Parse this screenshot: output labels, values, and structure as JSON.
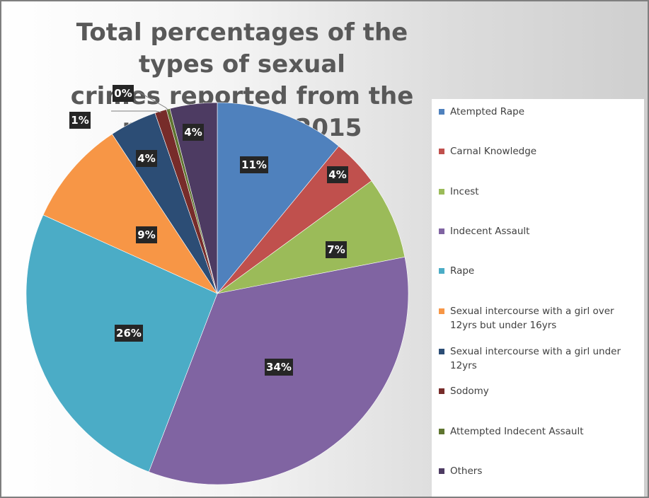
{
  "chart_data": {
    "type": "pie",
    "title": "Total percentages of the types of sexual crimes reported from the period 2008-2015",
    "title_lines": [
      "Total percentages of the types of sexual",
      "crimes reported from the period 2008-2015"
    ],
    "legend_position": "right",
    "slices": [
      {
        "label": "Atempted Rape",
        "value": 11,
        "data_label": "11%",
        "color": "#4f81bd"
      },
      {
        "label": "Carnal Knowledge",
        "value": 4,
        "data_label": "4%",
        "color": "#c0504d"
      },
      {
        "label": "Incest",
        "value": 7,
        "data_label": "7%",
        "color": "#9bbb59"
      },
      {
        "label": "Indecent Assault",
        "value": 34,
        "data_label": "34%",
        "color": "#8064a2"
      },
      {
        "label": "Rape",
        "value": 26,
        "data_label": "26%",
        "color": "#4bacc6"
      },
      {
        "label": "Sexual intercourse with a girl over 12yrs but under 16yrs",
        "value": 9,
        "data_label": "9%",
        "color": "#f79646"
      },
      {
        "label": "Sexual intercourse with a girl under 12yrs",
        "value": 4,
        "data_label": "4%",
        "color": "#2c4d75"
      },
      {
        "label": "Sodomy",
        "value": 1,
        "data_label": "1%",
        "color": "#772c2a"
      },
      {
        "label": "Attempted Indecent Assault",
        "value": 0.3,
        "data_label": "0%",
        "color": "#5f7530"
      },
      {
        "label": "Others",
        "value": 4,
        "data_label": "4%",
        "color": "#4d3b62"
      }
    ]
  }
}
